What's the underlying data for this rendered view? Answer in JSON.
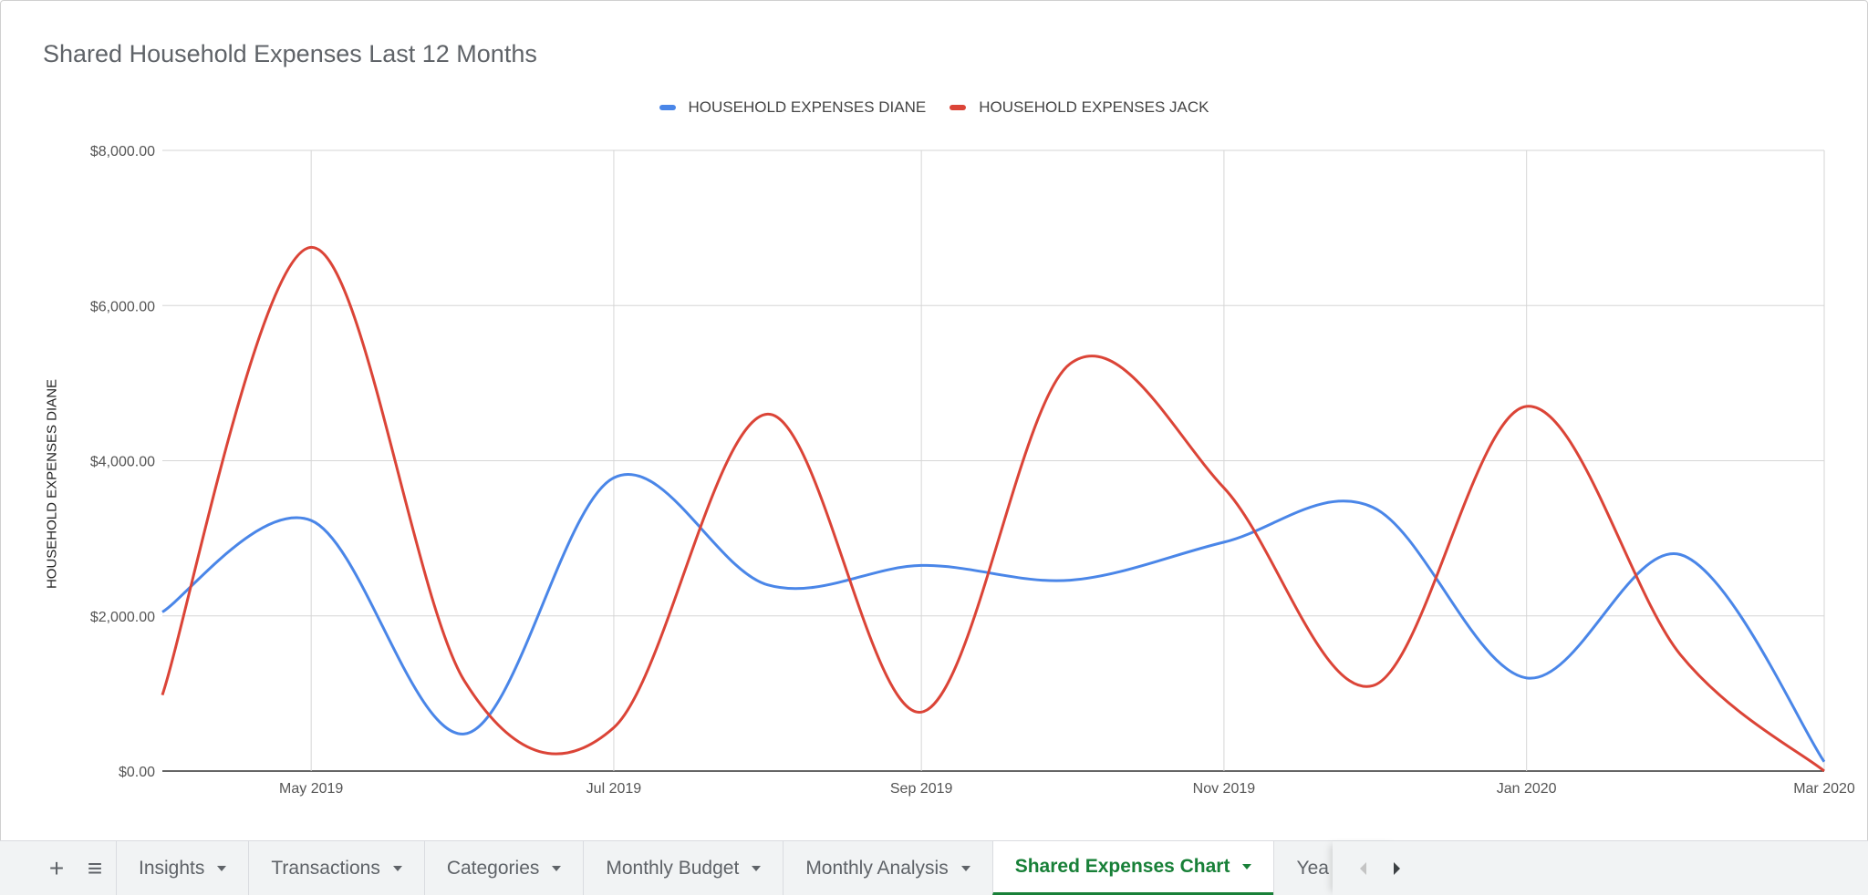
{
  "chart_data": {
    "type": "line",
    "title": "Shared Household Expenses Last 12 Months",
    "ylabel": "HOUSEHOLD EXPENSES DIANE",
    "xlabel": "",
    "ylim": [
      0,
      8000
    ],
    "yticks": [
      {
        "value": 0,
        "label": "$0.00"
      },
      {
        "value": 2000,
        "label": "$2,000.00"
      },
      {
        "value": 4000,
        "label": "$4,000.00"
      },
      {
        "value": 6000,
        "label": "$6,000.00"
      },
      {
        "value": 8000,
        "label": "$8,000.00"
      }
    ],
    "x_range": [
      "2019-04-01",
      "2020-03-01"
    ],
    "xticks": [
      {
        "date": "2019-05-01",
        "label": "May 2019"
      },
      {
        "date": "2019-07-01",
        "label": "Jul 2019"
      },
      {
        "date": "2019-09-01",
        "label": "Sep 2019"
      },
      {
        "date": "2019-11-01",
        "label": "Nov 2019"
      },
      {
        "date": "2020-01-01",
        "label": "Jan 2020"
      },
      {
        "date": "2020-03-01",
        "label": "Mar 2020"
      }
    ],
    "x": [
      "2019-04-01",
      "2019-05-01",
      "2019-06-01",
      "2019-07-01",
      "2019-08-01",
      "2019-09-01",
      "2019-10-01",
      "2019-11-01",
      "2019-12-01",
      "2020-01-01",
      "2020-02-01",
      "2020-03-01"
    ],
    "series": [
      {
        "name": "HOUSEHOLD EXPENSES DIANE",
        "color": "#4a86e8",
        "values": [
          2050,
          3230,
          480,
          3780,
          2400,
          2650,
          2460,
          2950,
          3400,
          1200,
          2790,
          120
        ]
      },
      {
        "name": "HOUSEHOLD EXPENSES JACK",
        "color": "#db4437",
        "values": [
          980,
          6750,
          1150,
          560,
          4600,
          760,
          5250,
          3650,
          1100,
          4700,
          1500,
          0
        ]
      }
    ],
    "grid": true,
    "legend": "top"
  },
  "tabs": {
    "add_icon": "+",
    "menu_icon": "≡",
    "items": [
      {
        "label": "Insights"
      },
      {
        "label": "Transactions"
      },
      {
        "label": "Categories"
      },
      {
        "label": "Monthly Budget"
      },
      {
        "label": "Monthly Analysis"
      },
      {
        "label": "Shared Expenses Chart",
        "active": true
      },
      {
        "label": "Yea",
        "partial": true
      }
    ]
  }
}
